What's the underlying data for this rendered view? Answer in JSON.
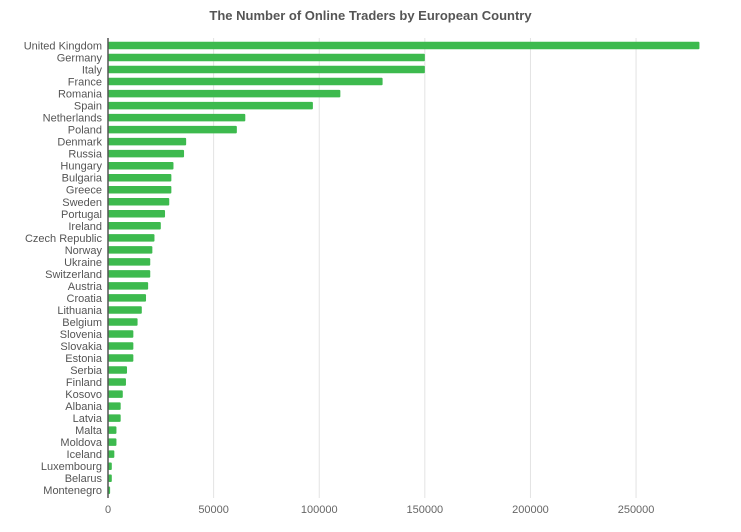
{
  "chart_data": {
    "type": "bar",
    "orientation": "horizontal",
    "title": "The Number of Online Traders by European Country",
    "xlabel": "",
    "ylabel": "",
    "xlim": [
      0,
      285000
    ],
    "x_ticks": [
      "0",
      "50000",
      "100000",
      "150000",
      "200000",
      "250000"
    ],
    "grid": true,
    "bar_color": "#3dba4e",
    "categories": [
      "United Kingdom",
      "Germany",
      "Italy",
      "France",
      "Romania",
      "Spain",
      "Netherlands",
      "Poland",
      "Denmark",
      "Russia",
      "Hungary",
      "Bulgaria",
      "Greece",
      "Sweden",
      "Portugal",
      "Ireland",
      "Czech Republic",
      "Norway",
      "Ukraine",
      "Switzerland",
      "Austria",
      "Croatia",
      "Lithuania",
      "Belgium",
      "Slovenia",
      "Slovakia",
      "Estonia",
      "Serbia",
      "Finland",
      "Kosovo",
      "Albania",
      "Latvia",
      "Malta",
      "Moldova",
      "Iceland",
      "Luxembourg",
      "Belarus",
      "Montenegro"
    ],
    "values": [
      280000,
      150000,
      150000,
      130000,
      110000,
      97000,
      65000,
      61000,
      37000,
      36000,
      31000,
      30000,
      30000,
      29000,
      27000,
      25000,
      22000,
      21000,
      20000,
      20000,
      19000,
      18000,
      16000,
      14000,
      12000,
      12000,
      12000,
      9000,
      8500,
      7000,
      6000,
      6000,
      4000,
      4000,
      3000,
      1800,
      1800,
      1000
    ]
  }
}
